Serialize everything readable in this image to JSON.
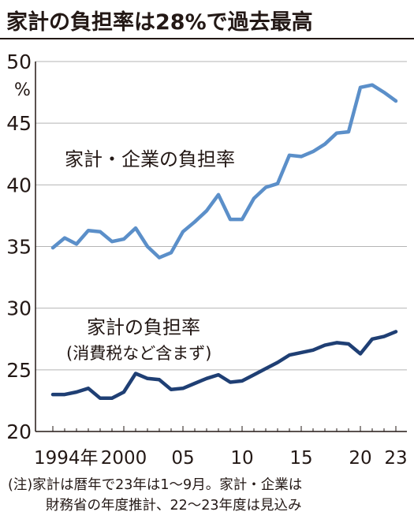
{
  "title": "家計の負担率は28%で過去最高",
  "notes": [
    "(注)家計は暦年で23年は1～9月。家計・企業は",
    "財務省の年度推計、22～23年度は見込み"
  ],
  "chart_data": {
    "type": "line",
    "ylabel": "%",
    "ylim": [
      20,
      50
    ],
    "yticks": [
      20,
      25,
      30,
      35,
      40,
      45,
      50
    ],
    "xlim": [
      1994,
      2023
    ],
    "xticks": [
      {
        "value": 1994,
        "label": "1994年"
      },
      {
        "value": 2000,
        "label": "2000"
      },
      {
        "value": 2005,
        "label": "05"
      },
      {
        "value": 2010,
        "label": "10"
      },
      {
        "value": 2015,
        "label": "15"
      },
      {
        "value": 2020,
        "label": "20"
      },
      {
        "value": 2023,
        "label": "23"
      }
    ],
    "grid": "horizontal",
    "x": [
      1994,
      1995,
      1996,
      1997,
      1998,
      1999,
      2000,
      2001,
      2002,
      2003,
      2004,
      2005,
      2006,
      2007,
      2008,
      2009,
      2010,
      2011,
      2012,
      2013,
      2014,
      2015,
      2016,
      2017,
      2018,
      2019,
      2020,
      2021,
      2022,
      2023
    ],
    "series": [
      {
        "name": "家計・企業の負担率",
        "color": "#5b8fc9",
        "values": [
          34.9,
          35.7,
          35.2,
          36.3,
          36.2,
          35.4,
          35.6,
          36.5,
          35.0,
          34.1,
          34.5,
          36.2,
          37.0,
          37.9,
          39.2,
          37.2,
          37.2,
          38.9,
          39.8,
          40.1,
          42.4,
          42.3,
          42.7,
          43.3,
          44.2,
          44.3,
          47.9,
          48.1,
          47.5,
          46.8
        ]
      },
      {
        "name": "家計の負担率",
        "name_sub": "(消費税など含まず)",
        "color": "#1f3f74",
        "values": [
          23.0,
          23.0,
          23.2,
          23.5,
          22.7,
          22.7,
          23.2,
          24.7,
          24.3,
          24.2,
          23.4,
          23.5,
          23.9,
          24.3,
          24.6,
          24.0,
          24.1,
          24.6,
          25.1,
          25.6,
          26.2,
          26.4,
          26.6,
          27.0,
          27.2,
          27.1,
          26.3,
          27.5,
          27.7,
          28.1
        ]
      }
    ]
  }
}
